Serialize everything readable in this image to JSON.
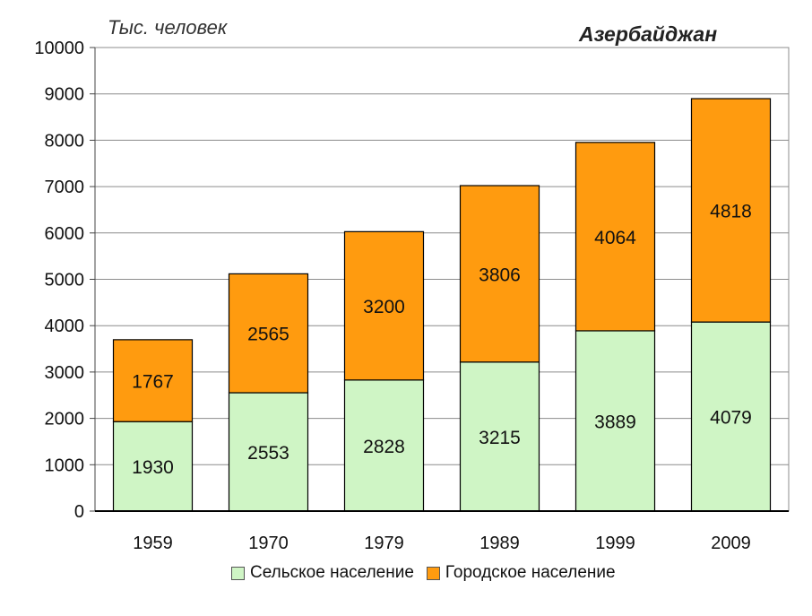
{
  "chart_data": {
    "type": "bar",
    "stacked": true,
    "title": "Азербайджан",
    "ylabel": "Тыс. человек",
    "xlabel": "",
    "categories": [
      "1959",
      "1970",
      "1979",
      "1989",
      "1999",
      "2009"
    ],
    "ylim": [
      0,
      10000
    ],
    "yticks": [
      0,
      1000,
      2000,
      3000,
      4000,
      5000,
      6000,
      7000,
      8000,
      9000,
      10000
    ],
    "grid": true,
    "legend_position": "bottom",
    "series": [
      {
        "name": "Сельское население",
        "color": "#cff5c5",
        "values": [
          1930,
          2553,
          2828,
          3215,
          3889,
          4079
        ]
      },
      {
        "name": "Городское население",
        "color": "#ff9b0f",
        "values": [
          1767,
          2565,
          3200,
          3806,
          4064,
          4818
        ]
      }
    ]
  }
}
